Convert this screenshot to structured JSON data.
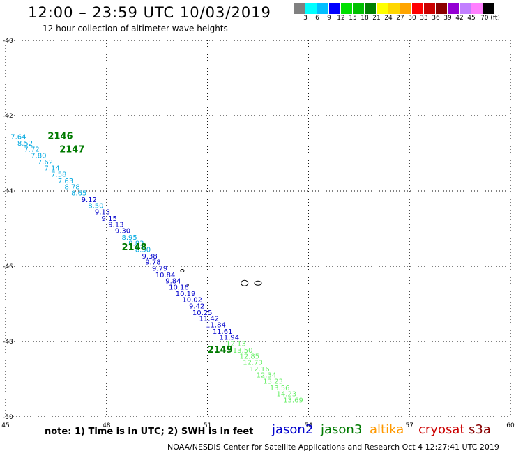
{
  "header": {
    "title": "12:00 – 23:59 UTC 10/03/2019",
    "subtitle": "12 hour collection of altimeter wave heights"
  },
  "colorbar": {
    "colors": [
      "#808080",
      "#00ffff",
      "#00bfff",
      "#0000ff",
      "#00e000",
      "#00c000",
      "#008000",
      "#ffff00",
      "#ffd700",
      "#ffa500",
      "#ff0000",
      "#cc0000",
      "#8b0000",
      "#9400d3",
      "#c27fff",
      "#ff80ff",
      "#000000"
    ],
    "labels": [
      "3",
      "6",
      "9",
      "12",
      "15",
      "18",
      "21",
      "24",
      "27",
      "30",
      "33",
      "36",
      "39",
      "42",
      "45",
      "70 (ft)"
    ]
  },
  "map": {
    "lon_ticks": [
      45,
      48,
      51,
      54,
      57,
      60
    ],
    "lon_labels": [
      "45",
      "48",
      "51",
      "54",
      "57",
      "60"
    ],
    "lat_ticks": [
      -40,
      -42,
      -44,
      -46,
      -48,
      -50
    ],
    "lat_labels": [
      "-40",
      "-42",
      "-44",
      "-46",
      "-48",
      "-50"
    ],
    "passes": [
      {
        "label": "2146",
        "color": "#007a00",
        "lon": 46.25,
        "lat": -42.55
      },
      {
        "label": "2147",
        "color": "#007a00",
        "lon": 46.6,
        "lat": -42.9
      },
      {
        "label": "2148",
        "color": "#007a00",
        "lon": 48.45,
        "lat": -45.5
      },
      {
        "label": "2149",
        "color": "#007a00",
        "lon": 51.0,
        "lat": -48.22
      }
    ],
    "observations": [
      {
        "v": "7.64",
        "color": "#00a8e0",
        "lon": 45.15,
        "lat": -42.55
      },
      {
        "v": "8.52",
        "color": "#00a8e0",
        "lon": 45.35,
        "lat": -42.72
      },
      {
        "v": "7.72",
        "color": "#00a8e0",
        "lon": 45.55,
        "lat": -42.88
      },
      {
        "v": "7.80",
        "color": "#00a8e0",
        "lon": 45.75,
        "lat": -43.05
      },
      {
        "v": "7.62",
        "color": "#00a8e0",
        "lon": 45.95,
        "lat": -43.22
      },
      {
        "v": "7.14",
        "color": "#00a8e0",
        "lon": 46.15,
        "lat": -43.38
      },
      {
        "v": "7.58",
        "color": "#00a8e0",
        "lon": 46.35,
        "lat": -43.55
      },
      {
        "v": "7.63",
        "color": "#00a8e0",
        "lon": 46.55,
        "lat": -43.72
      },
      {
        "v": "8.78",
        "color": "#00a8e0",
        "lon": 46.75,
        "lat": -43.88
      },
      {
        "v": "8.65",
        "color": "#00a8e0",
        "lon": 46.95,
        "lat": -44.05
      },
      {
        "v": "9.12",
        "color": "#0000cc",
        "lon": 47.25,
        "lat": -44.22
      },
      {
        "v": "8.50",
        "color": "#00a8e0",
        "lon": 47.45,
        "lat": -44.38
      },
      {
        "v": "9.13",
        "color": "#0000cc",
        "lon": 47.65,
        "lat": -44.55
      },
      {
        "v": "9.15",
        "color": "#0000cc",
        "lon": 47.85,
        "lat": -44.72
      },
      {
        "v": "9.13",
        "color": "#0000cc",
        "lon": 48.05,
        "lat": -44.88
      },
      {
        "v": "9.30",
        "color": "#0000cc",
        "lon": 48.25,
        "lat": -45.05
      },
      {
        "v": "8.95",
        "color": "#00a8e0",
        "lon": 48.45,
        "lat": -45.22
      },
      {
        "v": "8.83",
        "color": "#00a8e0",
        "lon": 48.65,
        "lat": -45.38
      },
      {
        "v": "8.50",
        "color": "#00a8e0",
        "lon": 48.85,
        "lat": -45.55
      },
      {
        "v": "9.38",
        "color": "#0000cc",
        "lon": 49.05,
        "lat": -45.72
      },
      {
        "v": "9.78",
        "color": "#0000cc",
        "lon": 49.15,
        "lat": -45.88
      },
      {
        "v": "9.79",
        "color": "#0000cc",
        "lon": 49.35,
        "lat": -46.05
      },
      {
        "v": "10.84",
        "color": "#0000cc",
        "lon": 49.45,
        "lat": -46.22
      },
      {
        "v": "9.84",
        "color": "#0000cc",
        "lon": 49.75,
        "lat": -46.38
      },
      {
        "v": "10.16",
        "color": "#0000cc",
        "lon": 49.85,
        "lat": -46.55
      },
      {
        "v": "10.19",
        "color": "#0000cc",
        "lon": 50.05,
        "lat": -46.72
      },
      {
        "v": "10.02",
        "color": "#0000cc",
        "lon": 50.25,
        "lat": -46.88
      },
      {
        "v": "9.42",
        "color": "#0000cc",
        "lon": 50.45,
        "lat": -47.05
      },
      {
        "v": "10.25",
        "color": "#0000cc",
        "lon": 50.55,
        "lat": -47.22
      },
      {
        "v": "11.42",
        "color": "#0000cc",
        "lon": 50.75,
        "lat": -47.38
      },
      {
        "v": "11.84",
        "color": "#0000cc",
        "lon": 50.95,
        "lat": -47.55
      },
      {
        "v": "11.61",
        "color": "#0000cc",
        "lon": 51.15,
        "lat": -47.72
      },
      {
        "v": "11.94",
        "color": "#0000cc",
        "lon": 51.35,
        "lat": -47.88
      },
      {
        "v": "12.13",
        "color": "#66ee66",
        "lon": 51.55,
        "lat": -48.05
      },
      {
        "v": "13.50",
        "color": "#66ee66",
        "lon": 51.75,
        "lat": -48.22
      },
      {
        "v": "12.85",
        "color": "#66ee66",
        "lon": 51.95,
        "lat": -48.38
      },
      {
        "v": "12.73",
        "color": "#66ee66",
        "lon": 52.05,
        "lat": -48.55
      },
      {
        "v": "12.16",
        "color": "#66ee66",
        "lon": 52.25,
        "lat": -48.72
      },
      {
        "v": "12.34",
        "color": "#66ee66",
        "lon": 52.45,
        "lat": -48.88
      },
      {
        "v": "13.23",
        "color": "#66ee66",
        "lon": 52.65,
        "lat": -49.05
      },
      {
        "v": "13.56",
        "color": "#66ee66",
        "lon": 52.85,
        "lat": -49.22
      },
      {
        "v": "14.23",
        "color": "#66ee66",
        "lon": 53.05,
        "lat": -49.38
      },
      {
        "v": "13.69",
        "color": "#66ee66",
        "lon": 53.25,
        "lat": -49.55
      }
    ]
  },
  "footer": {
    "note": "note:  1) Time is in UTC;  2) SWH is in feet",
    "legend": [
      {
        "name": "jason2",
        "color": "#0000cc"
      },
      {
        "name": "jason3",
        "color": "#007a00"
      },
      {
        "name": "altika",
        "color": "#ff9900"
      },
      {
        "name": "cryosat",
        "color": "#cc0000"
      },
      {
        "name": "s3a",
        "color": "#880000"
      }
    ],
    "credit": "NOAA/NESDIS Center for Satellite Applications and Research     Oct  4 12:27:41 UTC 2019"
  }
}
